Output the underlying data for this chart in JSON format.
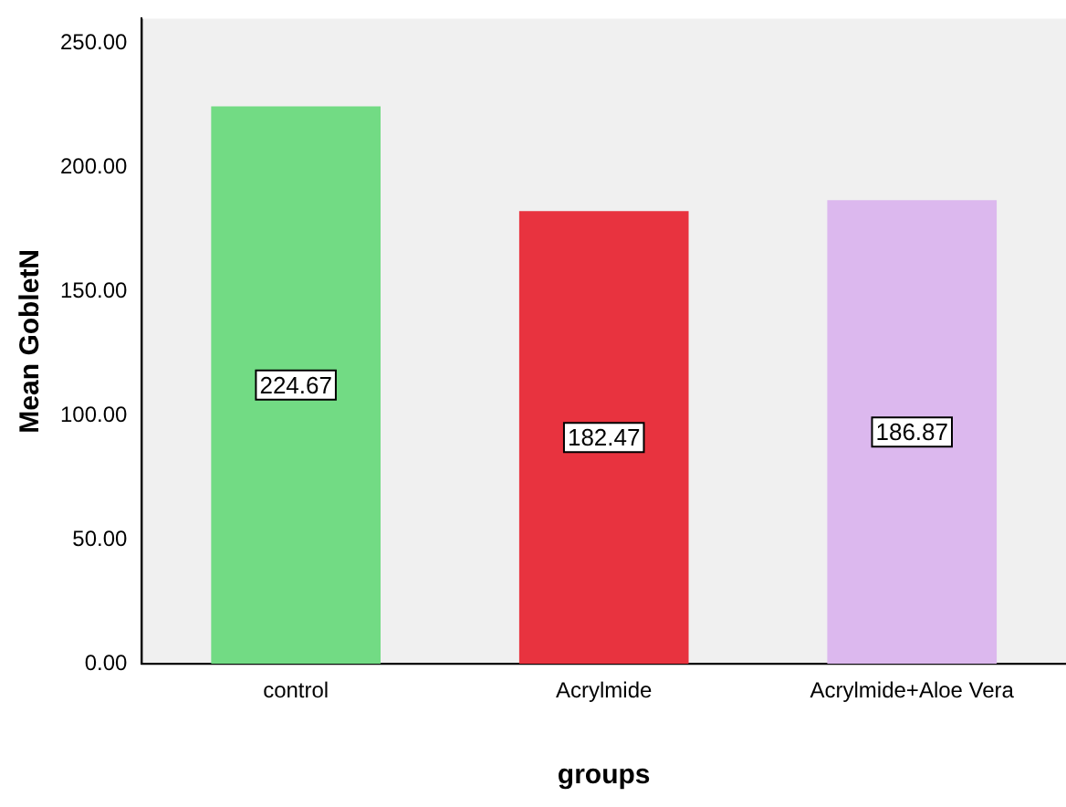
{
  "chart_data": {
    "type": "bar",
    "xlabel": "groups",
    "ylabel": "Mean GobletN",
    "categories": [
      "control",
      "Acrylmide",
      "Acrylmide+Aloe Vera"
    ],
    "values": [
      224.67,
      182.47,
      186.87
    ],
    "colors": [
      "#72db84",
      "#e8333f",
      "#dcb8ee"
    ],
    "ylim": [
      0,
      260
    ],
    "yticks": [
      {
        "value": 0,
        "label": "0.00"
      },
      {
        "value": 50,
        "label": "50.00"
      },
      {
        "value": 100,
        "label": "100.00"
      },
      {
        "value": 150,
        "label": "150.00"
      },
      {
        "value": 200,
        "label": "200.00"
      },
      {
        "value": 250,
        "label": "250.00"
      }
    ],
    "data_labels": true,
    "grid": false,
    "legend": false
  }
}
